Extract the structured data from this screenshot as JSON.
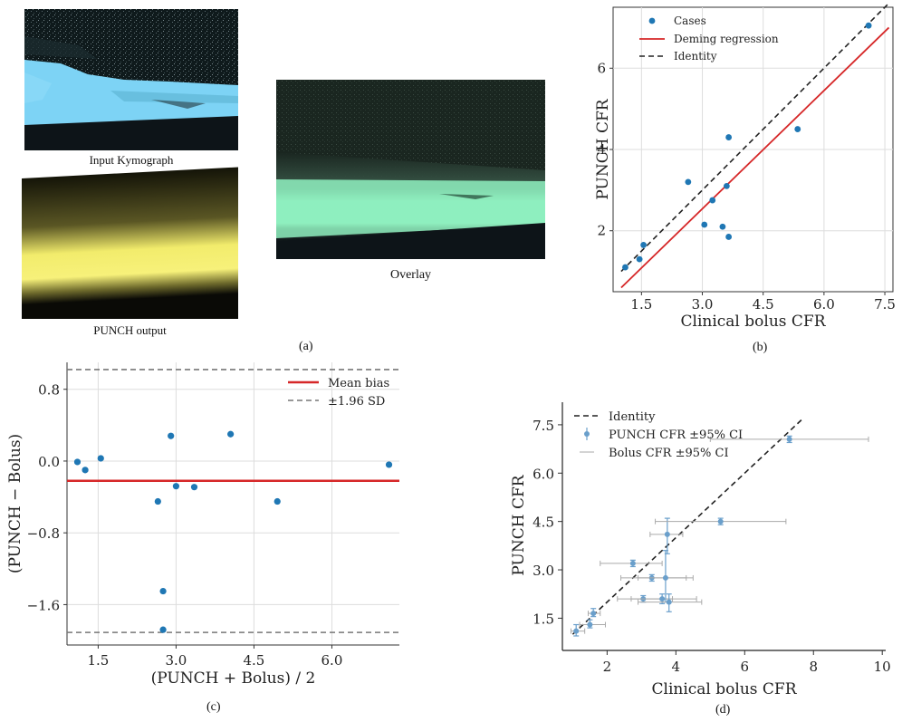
{
  "panel_a": {
    "input_caption": "Input Kymograph",
    "output_caption": "PUNCH output",
    "overlay_caption": "Overlay",
    "label": "(a)",
    "colors": {
      "input": "#7dd3f5",
      "output": "#f2ec6c",
      "overlay": "#8ff0c0",
      "dark": "#0d1418"
    }
  },
  "chart_data": [
    {
      "id": "b",
      "type": "scatter",
      "label": "(b)",
      "xlabel": "Clinical bolus CFR",
      "ylabel": "PUNCH CFR",
      "xlim": [
        0.8,
        7.7
      ],
      "ylim": [
        0.5,
        7.5
      ],
      "xticks": [
        1.5,
        3.0,
        4.5,
        6.0,
        7.5
      ],
      "xtick_labels": [
        "1.5",
        "3.0",
        "4.5",
        "6.0",
        "7.5"
      ],
      "yticks": [
        2,
        4,
        6
      ],
      "ytick_labels": [
        "2",
        "4",
        "6"
      ],
      "legend": [
        "Cases",
        "Deming regression",
        "Identity"
      ],
      "points": [
        {
          "x": 1.1,
          "y": 1.1
        },
        {
          "x": 1.45,
          "y": 1.3
        },
        {
          "x": 1.55,
          "y": 1.65
        },
        {
          "x": 2.65,
          "y": 3.2
        },
        {
          "x": 3.05,
          "y": 2.15
        },
        {
          "x": 3.25,
          "y": 2.75
        },
        {
          "x": 3.5,
          "y": 2.1
        },
        {
          "x": 3.6,
          "y": 3.1
        },
        {
          "x": 3.65,
          "y": 4.3
        },
        {
          "x": 3.65,
          "y": 1.85
        },
        {
          "x": 5.35,
          "y": 4.5
        },
        {
          "x": 7.1,
          "y": 7.05
        }
      ],
      "deming": {
        "x": [
          1.0,
          7.6
        ],
        "y": [
          0.6,
          7.0
        ]
      },
      "identity": {
        "x": [
          1.0,
          7.6
        ],
        "y": [
          1.0,
          7.6
        ]
      },
      "colors": {
        "points": "#1f77b4",
        "deming": "#d62728",
        "identity": "#222222"
      }
    },
    {
      "id": "c",
      "type": "scatter",
      "label": "(c)",
      "xlabel": "(PUNCH + Bolus) / 2",
      "ylabel": "(PUNCH − Bolus)",
      "xlim": [
        0.9,
        7.3
      ],
      "ylim": [
        -2.05,
        1.1
      ],
      "xticks": [
        1.5,
        3.0,
        4.5,
        6.0
      ],
      "xtick_labels": [
        "1.5",
        "3.0",
        "4.5",
        "6.0"
      ],
      "yticks": [
        -1.6,
        -0.8,
        0.0,
        0.8
      ],
      "ytick_labels": [
        "−1.6",
        "−0.8",
        "0.0",
        "0.8"
      ],
      "legend": [
        "Mean bias",
        "±1.96 SD"
      ],
      "mean_bias": -0.22,
      "sd_upper": 1.02,
      "sd_lower": -1.91,
      "points": [
        {
          "x": 1.1,
          "y": -0.01
        },
        {
          "x": 1.25,
          "y": -0.1
        },
        {
          "x": 1.55,
          "y": 0.03
        },
        {
          "x": 2.65,
          "y": -0.45
        },
        {
          "x": 2.75,
          "y": -1.45
        },
        {
          "x": 2.75,
          "y": -1.88
        },
        {
          "x": 2.9,
          "y": 0.28
        },
        {
          "x": 3.0,
          "y": -0.28
        },
        {
          "x": 3.35,
          "y": -0.29
        },
        {
          "x": 4.05,
          "y": 0.3
        },
        {
          "x": 4.95,
          "y": -0.45
        },
        {
          "x": 7.1,
          "y": -0.04
        }
      ],
      "colors": {
        "points": "#1f77b4",
        "mean": "#d62728",
        "sd": "#777777"
      }
    },
    {
      "id": "d",
      "type": "scatter",
      "label": "(d)",
      "xlabel": "Clinical bolus CFR",
      "ylabel": "PUNCH CFR",
      "xlim": [
        0.7,
        10.1
      ],
      "ylim": [
        0.5,
        8.2
      ],
      "xticks": [
        2,
        4,
        6,
        8,
        10
      ],
      "xtick_labels": [
        "2",
        "4",
        "6",
        "8",
        "10"
      ],
      "yticks": [
        1.5,
        3.0,
        4.5,
        6.0,
        7.5
      ],
      "ytick_labels": [
        "1.5",
        "3.0",
        "4.5",
        "6.0",
        "7.5"
      ],
      "legend": [
        "Identity",
        "PUNCH CFR ±95% CI",
        "Bolus CFR ±95% CI"
      ],
      "identity": {
        "x": [
          1.0,
          7.7
        ],
        "y": [
          1.0,
          7.7
        ]
      },
      "points": [
        {
          "x": 1.1,
          "y": 1.1,
          "xlo": 0.95,
          "xhi": 1.35,
          "ylo": 0.95,
          "yhi": 1.3
        },
        {
          "x": 1.5,
          "y": 1.3,
          "xlo": 1.2,
          "xhi": 1.95,
          "ylo": 1.2,
          "yhi": 1.45
        },
        {
          "x": 1.6,
          "y": 1.65,
          "xlo": 1.45,
          "xhi": 1.8,
          "ylo": 1.55,
          "yhi": 1.8
        },
        {
          "x": 2.75,
          "y": 3.2,
          "xlo": 1.8,
          "xhi": 3.6,
          "ylo": 3.1,
          "yhi": 3.3
        },
        {
          "x": 3.05,
          "y": 2.1,
          "xlo": 2.3,
          "xhi": 3.9,
          "ylo": 2.0,
          "yhi": 2.2
        },
        {
          "x": 3.3,
          "y": 2.75,
          "xlo": 2.4,
          "xhi": 4.3,
          "ylo": 2.65,
          "yhi": 2.85
        },
        {
          "x": 3.6,
          "y": 2.1,
          "xlo": 2.7,
          "xhi": 4.6,
          "ylo": 1.95,
          "yhi": 2.25
        },
        {
          "x": 3.7,
          "y": 2.75,
          "xlo": 2.9,
          "xhi": 4.5,
          "ylo": 2.0,
          "yhi": 3.6
        },
        {
          "x": 3.75,
          "y": 4.1,
          "xlo": 3.25,
          "xhi": 4.2,
          "ylo": 3.5,
          "yhi": 4.6
        },
        {
          "x": 3.8,
          "y": 2.0,
          "xlo": 2.9,
          "xhi": 4.75,
          "ylo": 1.7,
          "yhi": 2.25
        },
        {
          "x": 5.3,
          "y": 4.5,
          "xlo": 3.4,
          "xhi": 7.2,
          "ylo": 4.4,
          "yhi": 4.6
        },
        {
          "x": 7.3,
          "y": 7.05,
          "xlo": 5.0,
          "xhi": 9.6,
          "ylo": 6.95,
          "yhi": 7.15
        }
      ],
      "colors": {
        "points": "#6a9fcb",
        "punch_err": "#6a9fcb",
        "bolus_err": "#aaaaaa",
        "identity": "#222222"
      }
    }
  ]
}
